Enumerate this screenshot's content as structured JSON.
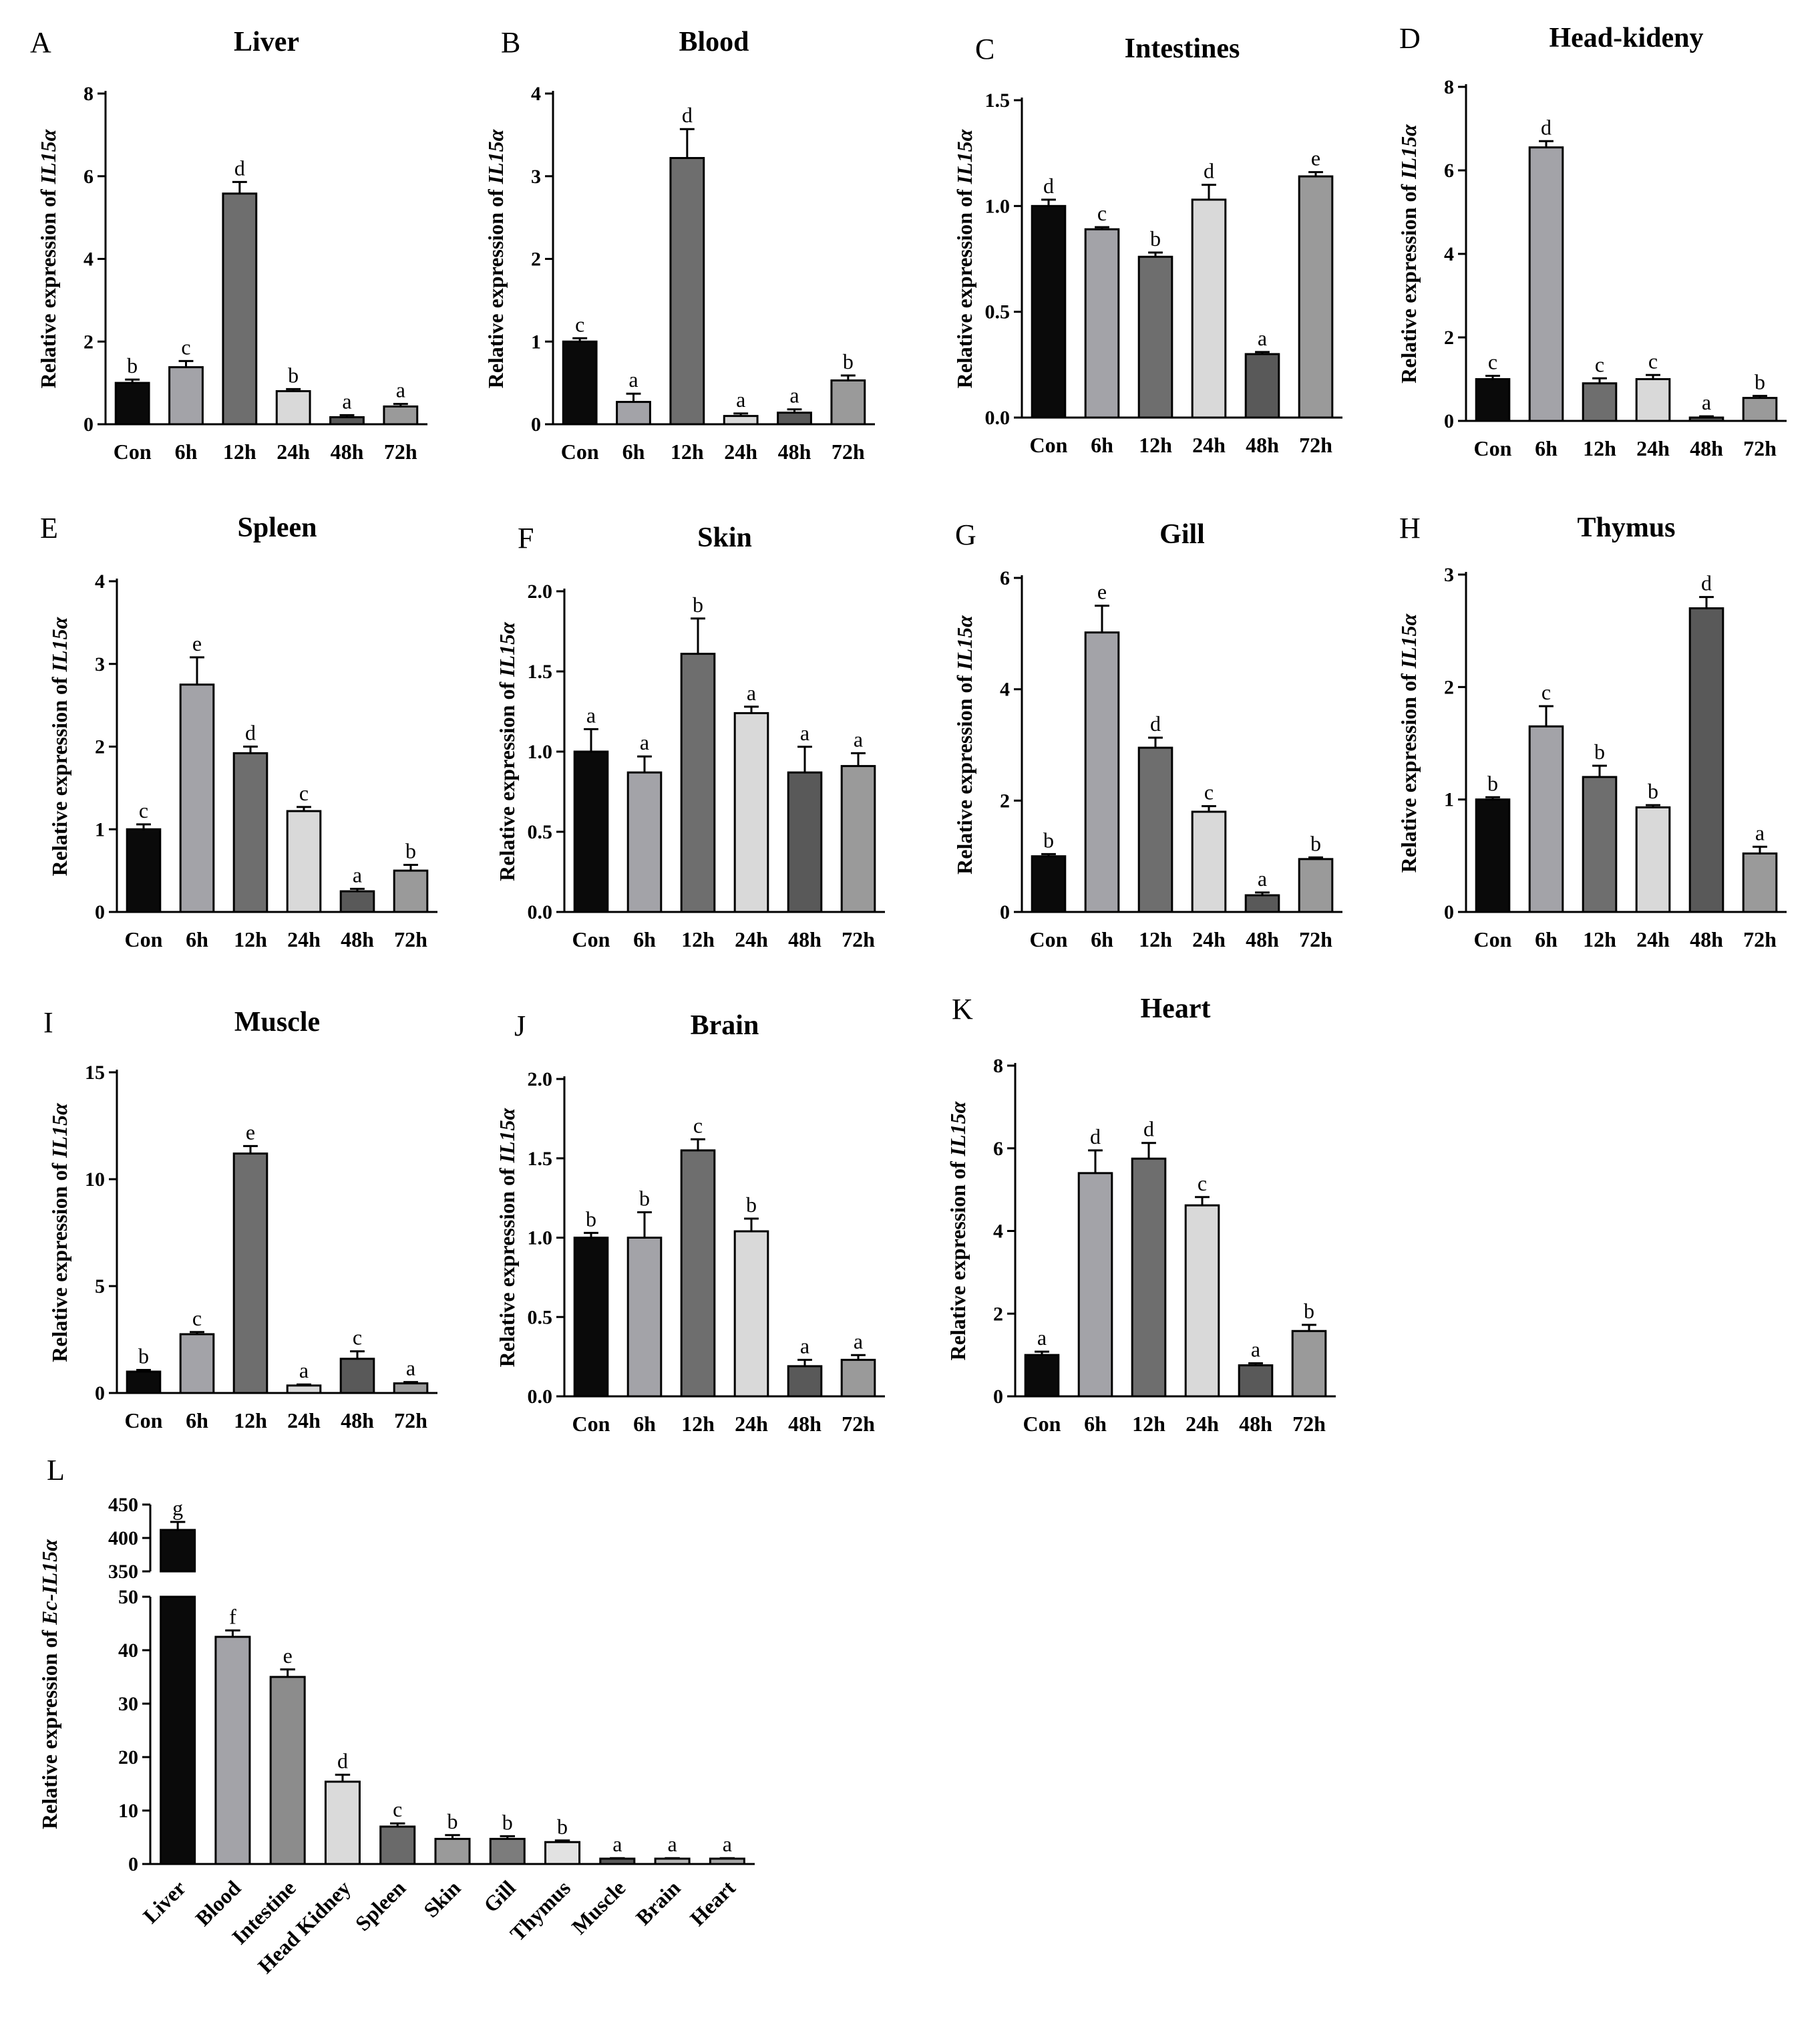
{
  "figure": {
    "ylabel_prefix": "Relative expression of ",
    "gene": "IL15α",
    "time_categories": [
      "Con",
      "6h",
      "12h",
      "24h",
      "48h",
      "72h"
    ],
    "bar_colors_time": [
      "#0a0a0a",
      "#a3a3a8",
      "#6e6e6e",
      "#d9d9d9",
      "#595959",
      "#9a9a9a"
    ]
  },
  "chart_data": [
    {
      "type": "bar",
      "letter": "A",
      "title": "Liver",
      "categories": [
        "Con",
        "6h",
        "12h",
        "24h",
        "48h",
        "72h"
      ],
      "values": [
        1.0,
        1.38,
        5.58,
        0.8,
        0.17,
        0.43
      ],
      "errors": [
        0.08,
        0.15,
        0.28,
        0.05,
        0.05,
        0.06
      ],
      "labels": [
        "b",
        "c",
        "d",
        "b",
        "a",
        "a"
      ],
      "ylim": [
        0,
        8
      ],
      "ticks": [
        "0",
        "2",
        "4",
        "6",
        "8"
      ],
      "ylabel": "Relative expression of IL15α"
    },
    {
      "type": "bar",
      "letter": "B",
      "title": "Blood",
      "categories": [
        "Con",
        "6h",
        "12h",
        "24h",
        "48h",
        "72h"
      ],
      "values": [
        1.0,
        0.27,
        3.22,
        0.1,
        0.14,
        0.53
      ],
      "errors": [
        0.04,
        0.1,
        0.35,
        0.03,
        0.04,
        0.06
      ],
      "labels": [
        "c",
        "a",
        "d",
        "a",
        "a",
        "b"
      ],
      "ylim": [
        0,
        4
      ],
      "ticks": [
        "0",
        "1",
        "2",
        "3",
        "4"
      ],
      "ylabel": "Relative expression of IL15α"
    },
    {
      "type": "bar",
      "letter": "C",
      "title": "Intestines",
      "categories": [
        "Con",
        "6h",
        "12h",
        "24h",
        "48h",
        "72h"
      ],
      "values": [
        1.0,
        0.89,
        0.76,
        1.03,
        0.3,
        1.14
      ],
      "errors": [
        0.03,
        0.01,
        0.02,
        0.07,
        0.01,
        0.02
      ],
      "labels": [
        "d",
        "c",
        "b",
        "d",
        "a",
        "e"
      ],
      "ylim": [
        0,
        1.5
      ],
      "ticks": [
        "0.0",
        "0.5",
        "1.0",
        "1.5"
      ],
      "ylabel": "Relative expression of IL15α"
    },
    {
      "type": "bar",
      "letter": "D",
      "title": "Head-kideny",
      "categories": [
        "Con",
        "6h",
        "12h",
        "24h",
        "48h",
        "72h"
      ],
      "values": [
        1.0,
        6.55,
        0.9,
        1.0,
        0.08,
        0.55
      ],
      "errors": [
        0.08,
        0.15,
        0.12,
        0.1,
        0.03,
        0.05
      ],
      "labels": [
        "c",
        "d",
        "c",
        "c",
        "a",
        "b"
      ],
      "ylim": [
        0,
        8
      ],
      "ticks": [
        "0",
        "2",
        "4",
        "6",
        "8"
      ],
      "ylabel": "Relative expression of IL15α"
    },
    {
      "type": "bar",
      "letter": "E",
      "title": "Spleen",
      "categories": [
        "Con",
        "6h",
        "12h",
        "24h",
        "48h",
        "72h"
      ],
      "values": [
        1.0,
        2.75,
        1.92,
        1.22,
        0.25,
        0.5
      ],
      "errors": [
        0.06,
        0.33,
        0.08,
        0.05,
        0.03,
        0.07
      ],
      "labels": [
        "c",
        "e",
        "d",
        "c",
        "a",
        "b"
      ],
      "ylim": [
        0,
        4
      ],
      "ticks": [
        "0",
        "1",
        "2",
        "3",
        "4"
      ],
      "ylabel": "Relative expression of IL15α"
    },
    {
      "type": "bar",
      "letter": "F",
      "title": "Skin",
      "categories": [
        "Con",
        "6h",
        "12h",
        "24h",
        "48h",
        "72h"
      ],
      "values": [
        1.0,
        0.87,
        1.61,
        1.24,
        0.87,
        0.91
      ],
      "errors": [
        0.14,
        0.1,
        0.22,
        0.04,
        0.16,
        0.08
      ],
      "labels": [
        "a",
        "a",
        "b",
        "a",
        "a",
        "a"
      ],
      "ylim": [
        0,
        2
      ],
      "ticks": [
        "0.0",
        "0.5",
        "1.0",
        "1.5",
        "2.0"
      ],
      "ylabel": "Relative expression of IL15α"
    },
    {
      "type": "bar",
      "letter": "G",
      "title": "Gill",
      "categories": [
        "Con",
        "6h",
        "12h",
        "24h",
        "48h",
        "72h"
      ],
      "values": [
        1.0,
        5.02,
        2.95,
        1.8,
        0.3,
        0.95
      ],
      "errors": [
        0.04,
        0.48,
        0.18,
        0.1,
        0.05,
        0.03
      ],
      "labels": [
        "b",
        "e",
        "d",
        "c",
        "a",
        "b"
      ],
      "ylim": [
        0,
        6
      ],
      "ticks": [
        "0",
        "2",
        "4",
        "6"
      ],
      "ylabel": "Relative expression of IL15α"
    },
    {
      "type": "bar",
      "letter": "H",
      "title": "Thymus",
      "categories": [
        "Con",
        "6h",
        "12h",
        "24h",
        "48h",
        "72h"
      ],
      "values": [
        1.0,
        1.65,
        1.2,
        0.93,
        2.7,
        0.52
      ],
      "errors": [
        0.02,
        0.18,
        0.1,
        0.02,
        0.1,
        0.06
      ],
      "labels": [
        "b",
        "c",
        "b",
        "b",
        "d",
        "a"
      ],
      "ylim": [
        0,
        3
      ],
      "ticks": [
        "0",
        "1",
        "2",
        "3"
      ],
      "ylabel": "Relative expression of IL15α"
    },
    {
      "type": "bar",
      "letter": "I",
      "title": "Muscle",
      "categories": [
        "Con",
        "6h",
        "12h",
        "24h",
        "48h",
        "72h"
      ],
      "values": [
        1.0,
        2.75,
        11.2,
        0.35,
        1.6,
        0.45
      ],
      "errors": [
        0.08,
        0.1,
        0.35,
        0.05,
        0.35,
        0.06
      ],
      "labels": [
        "b",
        "c",
        "e",
        "a",
        "c",
        "a"
      ],
      "ylim": [
        0,
        15
      ],
      "ticks": [
        "0",
        "5",
        "10",
        "15"
      ],
      "ylabel": "Relative expression of IL15α"
    },
    {
      "type": "bar",
      "letter": "J",
      "title": "Brain",
      "categories": [
        "Con",
        "6h",
        "12h",
        "24h",
        "48h",
        "72h"
      ],
      "values": [
        1.0,
        1.0,
        1.55,
        1.04,
        0.19,
        0.23
      ],
      "errors": [
        0.03,
        0.16,
        0.07,
        0.08,
        0.04,
        0.03
      ],
      "labels": [
        "b",
        "b",
        "c",
        "b",
        "a",
        "a"
      ],
      "ylim": [
        0,
        2
      ],
      "ticks": [
        "0.0",
        "0.5",
        "1.0",
        "1.5",
        "2.0"
      ],
      "ylabel": "Relative expression of IL15α"
    },
    {
      "type": "bar",
      "letter": "K",
      "title": "Heart",
      "categories": [
        "Con",
        "6h",
        "12h",
        "24h",
        "48h",
        "72h"
      ],
      "values": [
        1.0,
        5.4,
        5.75,
        4.62,
        0.75,
        1.58
      ],
      "errors": [
        0.08,
        0.55,
        0.38,
        0.2,
        0.05,
        0.15
      ],
      "labels": [
        "a",
        "d",
        "d",
        "c",
        "a",
        "b"
      ],
      "ylim": [
        0,
        8
      ],
      "ticks": [
        "0",
        "2",
        "4",
        "6",
        "8"
      ],
      "ylabel": "Relative expression of IL15α"
    },
    {
      "type": "bar",
      "letter": "L",
      "title": "",
      "broken_axis": true,
      "categories": [
        "Liver",
        "Blood",
        "Intestine",
        "Head Kidney",
        "Spleen",
        "Skin",
        "Gill",
        "Thymus",
        "Muscle",
        "Brain",
        "Heart"
      ],
      "values": [
        412,
        42.5,
        35,
        15.4,
        7,
        4.7,
        4.7,
        4.1,
        1.0,
        1.0,
        1.0
      ],
      "errors": [
        12,
        1.2,
        1.4,
        1.3,
        0.6,
        0.7,
        0.5,
        0.3,
        0.1,
        0.1,
        0.1
      ],
      "labels": [
        "g",
        "f",
        "e",
        "d",
        "c",
        "b",
        "b",
        "b",
        "a",
        "a",
        "a"
      ],
      "colors": [
        "#0a0a0a",
        "#a3a3a8",
        "#8c8c8c",
        "#dadada",
        "#6a6a6a",
        "#9a9a9a",
        "#7c7c7c",
        "#e2e2e2",
        "#595959",
        "#b5b5b5",
        "#a6a6a6"
      ],
      "ylim_lower": [
        0,
        50
      ],
      "ylim_upper": [
        350,
        450
      ],
      "ticks_lower": [
        "0",
        "10",
        "20",
        "30",
        "40",
        "50"
      ],
      "ticks_upper": [
        "350",
        "400",
        "450"
      ],
      "ylabel_prefix": "Relative expression of ",
      "ylabel_gene": "Ec-IL15α"
    }
  ]
}
